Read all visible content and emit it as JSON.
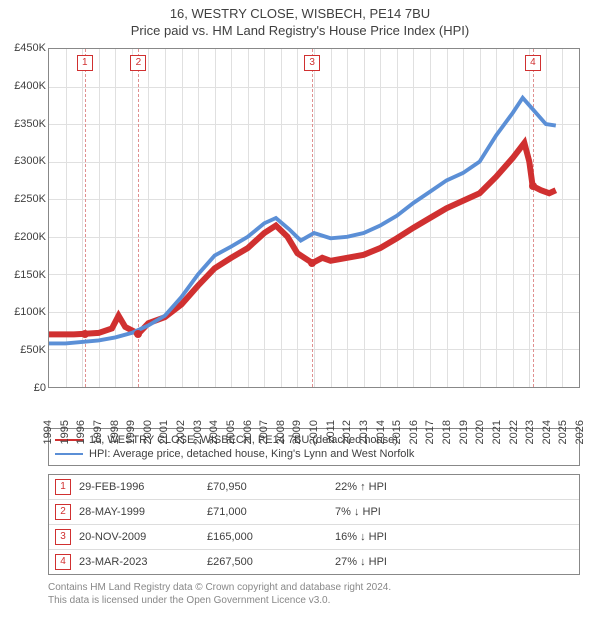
{
  "title_line1": "16, WESTRY CLOSE, WISBECH, PE14 7BU",
  "title_line2": "Price paid vs. HM Land Registry's House Price Index (HPI)",
  "chart": {
    "type": "line",
    "background_color": "#ffffff",
    "grid_color": "#e0e0e0",
    "frame_color": "#888888",
    "x": {
      "min": 1994,
      "max": 2026,
      "step": 1
    },
    "y": {
      "min": 0,
      "max": 450000,
      "step": 50000,
      "label_prefix": "£",
      "label_suffix": "K",
      "label_divisor": 1000
    },
    "series": [
      {
        "id": "price_paid",
        "color": "#d03030",
        "width": 2,
        "legend": "16, WESTRY CLOSE, WISBECH, PE14 7BU (detached house)",
        "points": [
          [
            1994.0,
            70000
          ],
          [
            1995.5,
            70000
          ],
          [
            1996.2,
            70950
          ],
          [
            1997.0,
            72000
          ],
          [
            1997.8,
            78000
          ],
          [
            1998.2,
            95000
          ],
          [
            1998.6,
            80000
          ],
          [
            1999.4,
            71000
          ],
          [
            2000.0,
            85000
          ],
          [
            2001.0,
            93000
          ],
          [
            2002.0,
            110000
          ],
          [
            2003.0,
            135000
          ],
          [
            2004.0,
            158000
          ],
          [
            2005.0,
            172000
          ],
          [
            2006.0,
            185000
          ],
          [
            2007.0,
            205000
          ],
          [
            2007.7,
            215000
          ],
          [
            2008.4,
            200000
          ],
          [
            2009.0,
            178000
          ],
          [
            2009.9,
            165000
          ],
          [
            2010.5,
            172000
          ],
          [
            2011.0,
            168000
          ],
          [
            2012.0,
            172000
          ],
          [
            2013.0,
            176000
          ],
          [
            2014.0,
            185000
          ],
          [
            2015.0,
            198000
          ],
          [
            2016.0,
            212000
          ],
          [
            2017.0,
            225000
          ],
          [
            2018.0,
            238000
          ],
          [
            2019.0,
            248000
          ],
          [
            2020.0,
            258000
          ],
          [
            2021.0,
            280000
          ],
          [
            2022.0,
            305000
          ],
          [
            2022.7,
            325000
          ],
          [
            2023.0,
            300000
          ],
          [
            2023.2,
            267500
          ],
          [
            2023.7,
            262000
          ],
          [
            2024.2,
            258000
          ],
          [
            2024.6,
            262000
          ]
        ]
      },
      {
        "id": "hpi",
        "color": "#5b8fd6",
        "width": 1.3,
        "legend": "HPI: Average price, detached house, King's Lynn and West Norfolk",
        "points": [
          [
            1994.0,
            58000
          ],
          [
            1995.0,
            58000
          ],
          [
            1996.0,
            60000
          ],
          [
            1997.0,
            62000
          ],
          [
            1998.0,
            66000
          ],
          [
            1999.0,
            72000
          ],
          [
            2000.0,
            82000
          ],
          [
            2001.0,
            95000
          ],
          [
            2002.0,
            120000
          ],
          [
            2003.0,
            150000
          ],
          [
            2004.0,
            175000
          ],
          [
            2005.0,
            187000
          ],
          [
            2006.0,
            200000
          ],
          [
            2007.0,
            218000
          ],
          [
            2007.7,
            225000
          ],
          [
            2008.5,
            210000
          ],
          [
            2009.2,
            195000
          ],
          [
            2010.0,
            205000
          ],
          [
            2011.0,
            198000
          ],
          [
            2012.0,
            200000
          ],
          [
            2013.0,
            205000
          ],
          [
            2014.0,
            215000
          ],
          [
            2015.0,
            228000
          ],
          [
            2016.0,
            245000
          ],
          [
            2017.0,
            260000
          ],
          [
            2018.0,
            275000
          ],
          [
            2019.0,
            285000
          ],
          [
            2020.0,
            300000
          ],
          [
            2021.0,
            335000
          ],
          [
            2022.0,
            365000
          ],
          [
            2022.6,
            385000
          ],
          [
            2023.2,
            370000
          ],
          [
            2024.0,
            350000
          ],
          [
            2024.6,
            348000
          ]
        ]
      }
    ],
    "markers": [
      {
        "n": "1",
        "year": 1996.16,
        "value": 70950
      },
      {
        "n": "2",
        "year": 1999.4,
        "value": 71000
      },
      {
        "n": "3",
        "year": 2009.89,
        "value": 165000
      },
      {
        "n": "4",
        "year": 2023.22,
        "value": 267500
      }
    ]
  },
  "legend_items": [
    {
      "color": "#d03030",
      "label": "16, WESTRY CLOSE, WISBECH, PE14 7BU (detached house)"
    },
    {
      "color": "#5b8fd6",
      "label": "HPI: Average price, detached house, King's Lynn and West Norfolk"
    }
  ],
  "transactions": [
    {
      "n": "1",
      "date": "29-FEB-1996",
      "price": "£70,950",
      "delta": "22% ↑ HPI"
    },
    {
      "n": "2",
      "date": "28-MAY-1999",
      "price": "£71,000",
      "delta": "7% ↓ HPI"
    },
    {
      "n": "3",
      "date": "20-NOV-2009",
      "price": "£165,000",
      "delta": "16% ↓ HPI"
    },
    {
      "n": "4",
      "date": "23-MAR-2023",
      "price": "£267,500",
      "delta": "27% ↓ HPI"
    }
  ],
  "footnote_line1": "Contains HM Land Registry data © Crown copyright and database right 2024.",
  "footnote_line2": "This data is licensed under the Open Government Licence v3.0."
}
